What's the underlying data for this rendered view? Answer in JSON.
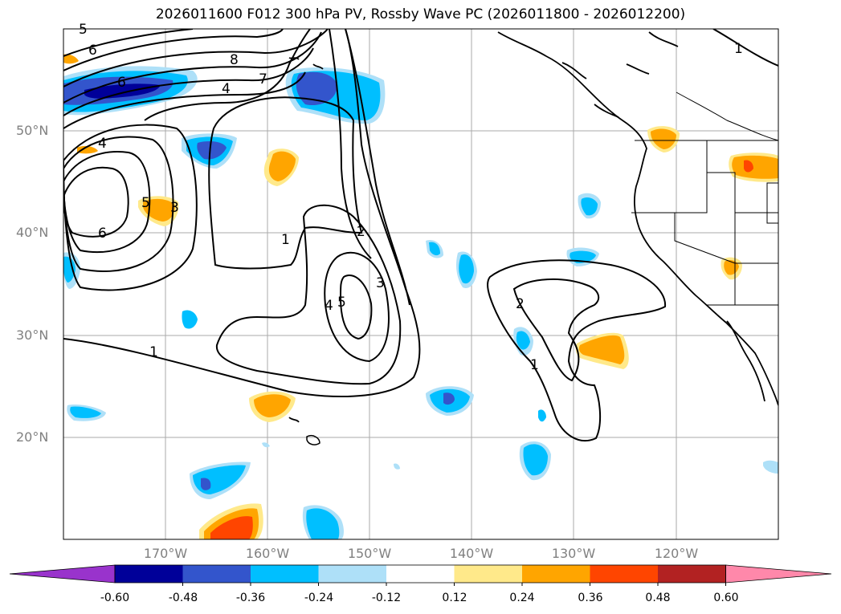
{
  "title": "2026011600 F012 300 hPa PV, Rossby Wave PC (2026011800 - 2026012200)",
  "lat_labels": [
    "50°N",
    "40°N",
    "30°N",
    "20°N"
  ],
  "lon_labels": [
    "170°W",
    "160°W",
    "150°W",
    "140°W",
    "130°W",
    "120°W"
  ],
  "colorbar": {
    "levels": [
      "-0.60",
      "-0.48",
      "-0.36",
      "-0.24",
      "-0.12",
      "0.12",
      "0.24",
      "0.36",
      "0.48",
      "0.60"
    ],
    "colors": [
      "#9933cc",
      "#000099",
      "#3355cc",
      "#00bfff",
      "#aee0f8",
      "#ffffff",
      "#ffe98a",
      "#ffa500",
      "#ff4500",
      "#b22222",
      "#ff88aa"
    ]
  },
  "contour_labels": [
    "6",
    "6",
    "8",
    "7",
    "4",
    "4",
    "6",
    "5",
    "3",
    "1",
    "2",
    "3",
    "5",
    "4",
    "1",
    "2",
    "1",
    "1",
    "5"
  ],
  "colors": {
    "contour": "#000000",
    "grid": "#aaaaaa",
    "coast": "#000000"
  }
}
